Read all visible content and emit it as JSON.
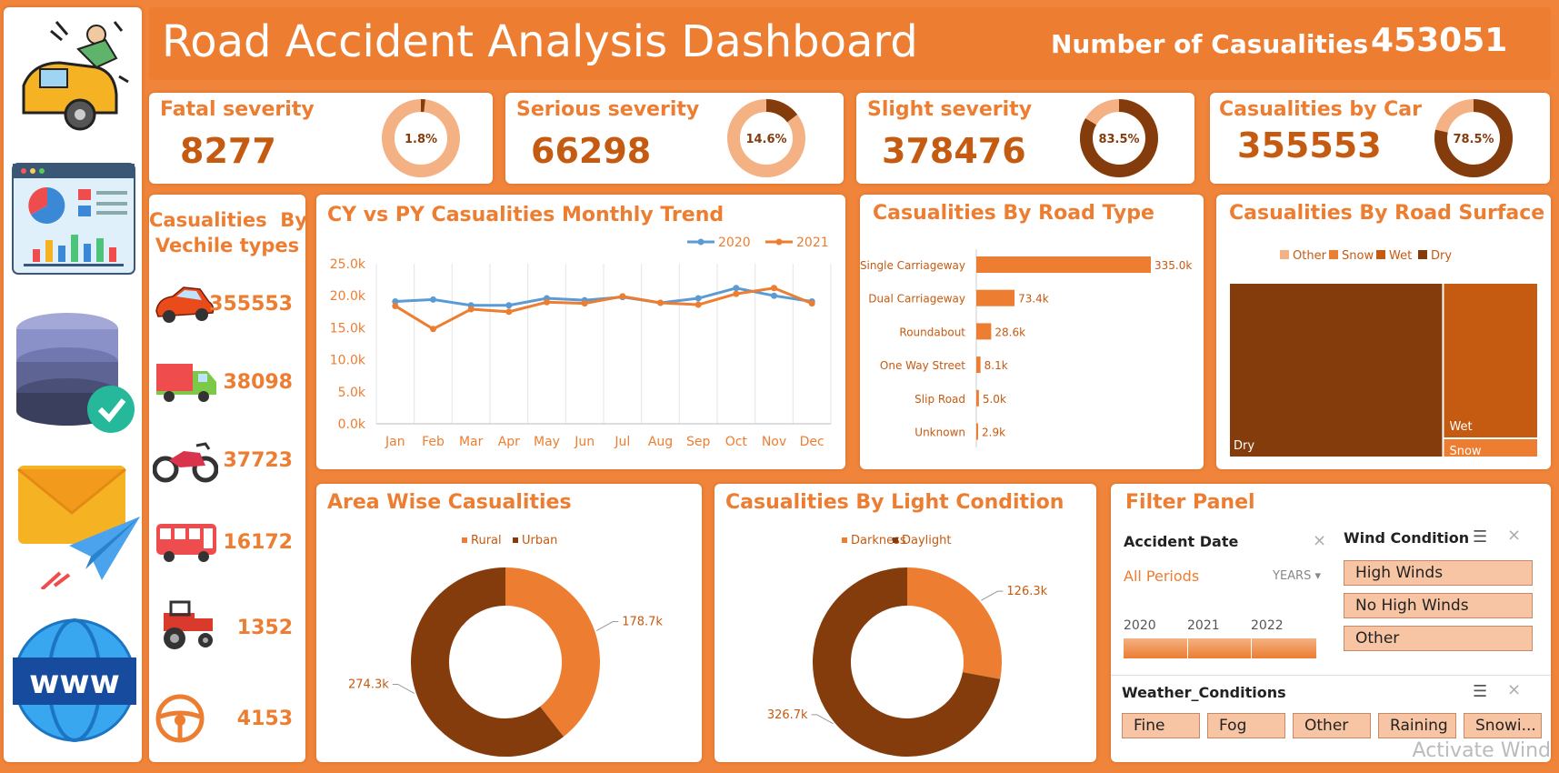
{
  "header": {
    "title": "Road Accident Analysis Dashboard",
    "casualties_label": "Number of Casualities",
    "casualties_value": "453051"
  },
  "kpis": [
    {
      "label": "Fatal severity",
      "value": "8277",
      "pct": 0.018,
      "pct_label": "1.8%"
    },
    {
      "label": "Serious severity",
      "value": "66298",
      "pct": 0.146,
      "pct_label": "14.6%"
    },
    {
      "label": "Slight severity",
      "value": "378476",
      "pct": 0.835,
      "pct_label": "83.5%"
    },
    {
      "label": "Casualities by Car",
      "value": "355553",
      "pct": 0.785,
      "pct_label": "78.5%"
    }
  ],
  "sidebar_icons": [
    "car-accident-icon",
    "dashboard-icon",
    "database-check-icon",
    "email-send-icon",
    "www-globe-icon"
  ],
  "vehicles": {
    "title_line1": "Casualities  By",
    "title_line2": "Vechile types",
    "items": [
      {
        "icon": "car-icon",
        "value": "355553"
      },
      {
        "icon": "truck-icon",
        "value": "38098"
      },
      {
        "icon": "motorcycle-icon",
        "value": "37723"
      },
      {
        "icon": "bus-icon",
        "value": "16172"
      },
      {
        "icon": "tractor-icon",
        "value": "1352"
      },
      {
        "icon": "steering-wheel-icon",
        "value": "4153"
      }
    ]
  },
  "chart_data": [
    {
      "type": "line",
      "title": "CY vs PY Casualities Monthly Trend",
      "categories": [
        "Jan",
        "Feb",
        "Mar",
        "Apr",
        "May",
        "Jun",
        "Jul",
        "Aug",
        "Sep",
        "Oct",
        "Nov",
        "Dec"
      ],
      "series": [
        {
          "name": "2020",
          "color": "#5b9bd5",
          "values": [
            19100,
            19400,
            18500,
            18500,
            19600,
            19300,
            19800,
            18900,
            19600,
            21200,
            20000,
            19100
          ]
        },
        {
          "name": "2021",
          "color": "#ed7d31",
          "values": [
            18400,
            14800,
            17900,
            17500,
            19000,
            18800,
            19900,
            18900,
            18600,
            20300,
            21200,
            18800
          ]
        }
      ],
      "ylim": [
        0,
        25000
      ],
      "yticks": [
        "0.0k",
        "5.0k",
        "10.0k",
        "15.0k",
        "20.0k",
        "25.0k"
      ],
      "grid": "vertical",
      "legend": "top-right"
    },
    {
      "type": "bar",
      "orientation": "horizontal",
      "title": "Casualities By Road Type",
      "categories": [
        "Single Carriageway",
        "Dual Carriageway",
        "Roundabout",
        "One Way Street",
        "Slip Road",
        "Unknown"
      ],
      "values": [
        335000,
        73400,
        28600,
        8100,
        5000,
        2900
      ],
      "labels": [
        "335.0k",
        "73.4k",
        "28.6k",
        "8.1k",
        "5.0k",
        "2.9k"
      ],
      "color": "#ed7d31"
    },
    {
      "type": "treemap",
      "title": "Casualities By Road Surface",
      "legend": [
        "Other",
        "Snow",
        "Wet",
        "Dry"
      ],
      "legend_colors": [
        "#f4b183",
        "#ed7d31",
        "#c55a11",
        "#843c0c"
      ],
      "cells": [
        {
          "name": "Dry",
          "label": "Dry",
          "value": 0.67,
          "color": "#843c0c"
        },
        {
          "name": "Wet",
          "label": "Wet",
          "value": 0.27,
          "color": "#c55a11"
        },
        {
          "name": "Snow",
          "label": "Snow",
          "value": 0.03,
          "color": "#ed7d31"
        }
      ]
    },
    {
      "type": "pie",
      "style": "donut",
      "title": "Area Wise Casualities",
      "categories": [
        "Rural",
        "Urban"
      ],
      "values": [
        178700,
        274300
      ],
      "labels": [
        "178.7k",
        "274.3k"
      ],
      "colors": [
        "#ed7d31",
        "#843c0c"
      ],
      "legend": "top"
    },
    {
      "type": "pie",
      "style": "donut",
      "title": "Casualities By Light Condition",
      "categories": [
        "Darkness",
        "Daylight"
      ],
      "values": [
        126300,
        326700
      ],
      "labels": [
        "126.3k",
        "326.7k"
      ],
      "colors": [
        "#ed7d31",
        "#843c0c"
      ],
      "legend": "top"
    }
  ],
  "filter": {
    "title": "Filter Panel",
    "date_label": "Accident Date",
    "all_periods": "All Periods",
    "years_label": "YEARS",
    "years": [
      "2020",
      "2021",
      "2022"
    ],
    "wind_label": "Wind Condition",
    "wind_options": [
      "High Winds",
      "No High Winds",
      "Other"
    ],
    "weather_label": "Weather_Conditions",
    "weather_options": [
      "Fine",
      "Fog",
      "Other",
      "Raining",
      "Snowi..."
    ]
  },
  "watermark": "Activate Wind"
}
